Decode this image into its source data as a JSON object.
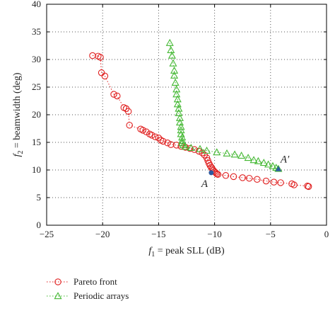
{
  "chart_data": {
    "type": "scatter",
    "xlabel_pre": "f",
    "xlabel_sub": "1",
    "xlabel_post": " = peak SLL (dB)",
    "ylabel_pre": "f",
    "ylabel_sub": "2",
    "ylabel_post": " = beamwidth (deg)",
    "xlim": [
      -25,
      0
    ],
    "ylim": [
      0,
      40
    ],
    "xticks": [
      -25,
      -20,
      -15,
      -10,
      -5,
      0
    ],
    "yticks": [
      0,
      5,
      10,
      15,
      20,
      25,
      30,
      35,
      40
    ],
    "grid": true,
    "legend_position": "below",
    "series": [
      {
        "name": "Pareto front",
        "marker": "circle",
        "color": "#e02020",
        "points": [
          [
            -20.9,
            30.7
          ],
          [
            -20.4,
            30.6
          ],
          [
            -20.2,
            30.4
          ],
          [
            -20.1,
            27.6
          ],
          [
            -19.8,
            27.0
          ],
          [
            -19.0,
            23.7
          ],
          [
            -18.7,
            23.4
          ],
          [
            -18.1,
            21.3
          ],
          [
            -17.9,
            21.1
          ],
          [
            -17.7,
            20.6
          ],
          [
            -17.6,
            18.1
          ],
          [
            -16.6,
            17.4
          ],
          [
            -16.4,
            17.2
          ],
          [
            -16.1,
            16.9
          ],
          [
            -15.8,
            16.5
          ],
          [
            -15.6,
            16.3
          ],
          [
            -15.3,
            16.0
          ],
          [
            -15.0,
            15.8
          ],
          [
            -14.8,
            15.4
          ],
          [
            -14.6,
            15.2
          ],
          [
            -14.2,
            14.9
          ],
          [
            -13.9,
            14.6
          ],
          [
            -13.4,
            14.5
          ],
          [
            -13.0,
            14.3
          ],
          [
            -12.6,
            14.1
          ],
          [
            -12.2,
            13.9
          ],
          [
            -11.8,
            13.7
          ],
          [
            -11.4,
            13.4
          ],
          [
            -11.1,
            13.1
          ],
          [
            -10.9,
            12.7
          ],
          [
            -10.7,
            12.2
          ],
          [
            -10.6,
            11.7
          ],
          [
            -10.5,
            11.2
          ],
          [
            -10.4,
            10.8
          ],
          [
            -10.3,
            10.5
          ],
          [
            -10.2,
            10.2
          ],
          [
            -10.1,
            9.9
          ],
          [
            -10.0,
            9.7
          ],
          [
            -9.9,
            9.5
          ],
          [
            -9.8,
            9.3
          ],
          [
            -9.7,
            9.2
          ],
          [
            -9.0,
            9.0
          ],
          [
            -8.3,
            8.8
          ],
          [
            -7.5,
            8.6
          ],
          [
            -6.9,
            8.5
          ],
          [
            -6.2,
            8.3
          ],
          [
            -5.4,
            8.0
          ],
          [
            -4.7,
            7.8
          ],
          [
            -4.1,
            7.7
          ],
          [
            -3.1,
            7.5
          ],
          [
            -2.9,
            7.3
          ],
          [
            -1.7,
            7.1
          ],
          [
            -1.6,
            7.0
          ]
        ]
      },
      {
        "name": "Periodic arrays",
        "marker": "triangle",
        "color": "#44b833",
        "points": [
          [
            -14.0,
            33.0
          ],
          [
            -13.9,
            31.7
          ],
          [
            -13.8,
            30.7
          ],
          [
            -13.7,
            29.3
          ],
          [
            -13.6,
            28.0
          ],
          [
            -13.6,
            27.1
          ],
          [
            -13.5,
            25.8
          ],
          [
            -13.4,
            24.6
          ],
          [
            -13.4,
            23.7
          ],
          [
            -13.3,
            22.8
          ],
          [
            -13.3,
            21.9
          ],
          [
            -13.2,
            21.1
          ],
          [
            -13.2,
            20.3
          ],
          [
            -13.1,
            19.4
          ],
          [
            -13.1,
            18.6
          ],
          [
            -13.0,
            17.8
          ],
          [
            -13.0,
            17.2
          ],
          [
            -13.0,
            16.5
          ],
          [
            -12.9,
            15.9
          ],
          [
            -12.9,
            15.3
          ],
          [
            -12.9,
            14.9
          ],
          [
            -12.8,
            14.5
          ],
          [
            -12.6,
            14.2
          ],
          [
            -12.1,
            14.0
          ],
          [
            -11.3,
            13.8
          ],
          [
            -10.7,
            13.5
          ],
          [
            -9.8,
            13.2
          ],
          [
            -8.9,
            13.0
          ],
          [
            -8.2,
            12.8
          ],
          [
            -7.6,
            12.6
          ],
          [
            -7.0,
            12.2
          ],
          [
            -6.5,
            11.8
          ],
          [
            -6.1,
            11.6
          ],
          [
            -5.6,
            11.3
          ],
          [
            -5.2,
            11.0
          ],
          [
            -4.8,
            10.7
          ],
          [
            -4.5,
            10.4
          ],
          [
            -4.3,
            10.2
          ]
        ]
      }
    ],
    "annotations": [
      {
        "text": "A",
        "x": -10.3,
        "y": 9.5
      },
      {
        "text": "A′",
        "x": -4.3,
        "y": 10.2
      }
    ],
    "highlight_marker_color": "#2c5aa0"
  }
}
